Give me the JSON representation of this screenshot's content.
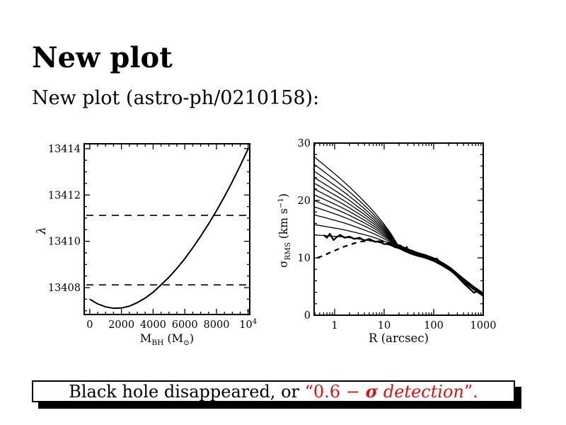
{
  "slide": {
    "title": "New plot",
    "subtitle": "New plot (astro-ph/0210158):"
  },
  "footer": {
    "black_text": "Black hole disappeared, or ",
    "red_lead": "“0.6 − ",
    "red_sigma": "σ",
    "red_italic": " detection",
    "red_close": "”.",
    "red_color": "#d01818"
  },
  "chart_data": [
    {
      "id": "lambda-vs-black-hole-mass",
      "type": "line",
      "xlabel": "M_BH (M_⊙)",
      "xlabel_parts": [
        [
          "M",
          "n"
        ],
        [
          "BH",
          "sub"
        ],
        [
          " (M",
          "n"
        ],
        [
          "⊙",
          "sub"
        ],
        [
          ")",
          "n"
        ]
      ],
      "ylabel": "λ",
      "xlim": [
        -350,
        10100
      ],
      "ylim": [
        13406.84,
        13414.21
      ],
      "xticks": [
        0,
        2000,
        4000,
        6000,
        8000,
        10000
      ],
      "xtick_labels": [
        "0",
        "2000",
        "4000",
        "6000",
        "8000",
        "10^4"
      ],
      "xminor_step": 500,
      "yticks": [
        13408,
        13410,
        13412,
        13414
      ],
      "ytick_labels": [
        "13408",
        "13410",
        "13412",
        "13414"
      ],
      "yminor_step": 0.5,
      "grid": false,
      "series": [
        {
          "name": "lambda-curve",
          "x": [
            0,
            500,
            1000,
            1500,
            2000,
            2500,
            3000,
            3500,
            4000,
            4500,
            5000,
            5500,
            6000,
            6500,
            7000,
            7500,
            8000,
            8500,
            9000,
            9500,
            10000
          ],
          "y": [
            13407.5,
            13407.3,
            13407.17,
            13407.11,
            13407.12,
            13407.2,
            13407.35,
            13407.55,
            13407.8,
            13408.12,
            13408.45,
            13408.83,
            13409.25,
            13409.72,
            13410.22,
            13410.75,
            13411.32,
            13411.93,
            13412.58,
            13413.27,
            13414.0
          ]
        }
      ],
      "dashed_hlines": [
        13408.12,
        13411.12
      ]
    },
    {
      "id": "sigma-rms-vs-radius",
      "type": "line",
      "xscale": "log",
      "xlabel": "R (arcsec)",
      "ylabel": "σ_RMS (km s⁻¹)",
      "ylabel_parts": [
        [
          "σ",
          "n"
        ],
        [
          "RMS",
          "sub"
        ],
        [
          " (km s",
          "n"
        ],
        [
          "−1",
          "sup"
        ],
        [
          ")",
          "n"
        ]
      ],
      "xlim": [
        0.386,
        1000
      ],
      "ylim": [
        0,
        30
      ],
      "xticks": [
        1,
        10,
        100,
        1000
      ],
      "xtick_labels": [
        "1",
        "10",
        "100",
        "1000"
      ],
      "yticks": [
        0,
        10,
        20,
        30
      ],
      "ytick_labels": [
        "0",
        "10",
        "20",
        "30"
      ],
      "yminor_step": 2,
      "grid": false,
      "model_curves": {
        "start_sigmas": [
          27.6,
          26.3,
          25.1,
          24.0,
          23.0,
          22.0,
          21.0,
          20.0,
          18.9,
          17.5,
          15.8,
          14.0
        ],
        "pinch_radius": 20,
        "w_exponent": 0.8,
        "residual_floor": 0.02
      },
      "base_profile": {
        "R": [
          0.386,
          0.55,
          0.8,
          1.2,
          1.8,
          2.7,
          4,
          6,
          9,
          13,
          20,
          30,
          45,
          70,
          100,
          150,
          220,
          320,
          460,
          650,
          820,
          1000
        ],
        "sigma": [
          14.0,
          13.9,
          13.8,
          13.7,
          13.55,
          13.35,
          13.15,
          12.9,
          12.55,
          12.2,
          11.6,
          11.0,
          10.4,
          9.9,
          9.4,
          8.6,
          7.7,
          6.5,
          5.4,
          4.4,
          3.8,
          3.3
        ]
      },
      "observed": {
        "name": "observed-sigma-rms",
        "R": [
          0.6,
          0.7,
          0.8,
          0.95,
          1.1,
          1.3,
          1.6,
          2.0,
          2.5,
          3.2,
          4.0,
          5.0,
          6.5,
          8.0,
          10,
          13,
          16,
          20,
          26,
          33,
          42,
          55,
          70,
          90,
          115,
          145,
          185,
          240,
          310,
          400,
          520,
          650,
          800,
          1000
        ],
        "sigma": [
          14.0,
          13.5,
          14.2,
          13.1,
          13.6,
          14.0,
          13.5,
          13.7,
          13.3,
          13.5,
          13.0,
          13.3,
          12.8,
          12.9,
          12.4,
          12.5,
          11.9,
          11.7,
          11.2,
          10.8,
          10.5,
          10.2,
          10.4,
          9.6,
          9.9,
          8.9,
          8.3,
          7.6,
          6.6,
          5.6,
          4.7,
          3.9,
          4.3,
          3.4
        ]
      },
      "dashed_curve": {
        "name": "dashed-model",
        "R": [
          0.45,
          0.6,
          0.8,
          1.1,
          1.5,
          2.2,
          3.2,
          5.0,
          8.0,
          13,
          20,
          30
        ],
        "sigma": [
          10.0,
          10.4,
          10.9,
          11.4,
          11.9,
          12.4,
          12.8,
          13.0,
          12.9,
          12.6,
          12.2,
          11.8
        ]
      }
    }
  ]
}
